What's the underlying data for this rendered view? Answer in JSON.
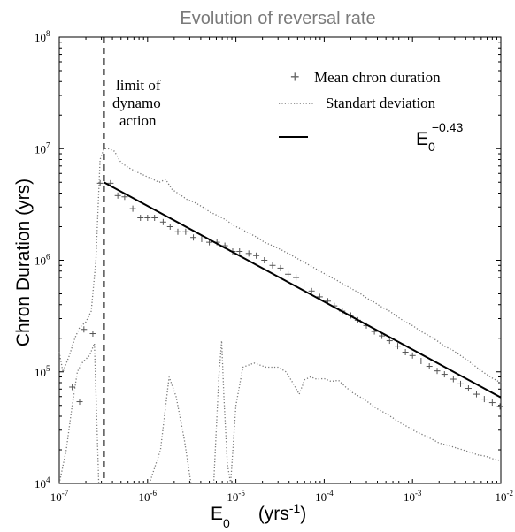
{
  "chart_data": {
    "type": "scatter",
    "title": "Evolution  of reversal rate",
    "xlabel": {
      "base": "E",
      "sub": "0",
      "unit_prefix": "(yrs",
      "unit_exp": "-1",
      "unit_suffix": ")"
    },
    "ylabel": "Chron Duration   (yrs)",
    "x_scale": "log",
    "y_scale": "log",
    "xlim": [
      1e-07,
      0.01
    ],
    "ylim": [
      10000.0,
      100000000.0
    ],
    "x_ticks": [
      {
        "value": 1e-07,
        "base": "10",
        "exp": "-7"
      },
      {
        "value": 1e-06,
        "base": "10",
        "exp": "-6"
      },
      {
        "value": 1e-05,
        "base": "10",
        "exp": "-5"
      },
      {
        "value": 0.0001,
        "base": "10",
        "exp": "-4"
      },
      {
        "value": 0.001,
        "base": "10",
        "exp": "-3"
      },
      {
        "value": 0.01,
        "base": "10",
        "exp": "-2"
      }
    ],
    "y_ticks": [
      {
        "value": 10000.0,
        "base": "10",
        "exp": "4"
      },
      {
        "value": 100000.0,
        "base": "10",
        "exp": "5"
      },
      {
        "value": 1000000.0,
        "base": "10",
        "exp": "6"
      },
      {
        "value": 10000000.0,
        "base": "10",
        "exp": "7"
      },
      {
        "value": 100000000.0,
        "base": "10",
        "exp": "8"
      }
    ],
    "grid": false,
    "legend_position": "top-right",
    "legend": [
      {
        "label": "Mean chron duration",
        "style": "plus"
      },
      {
        "label": "Standart deviation",
        "style": "dotted"
      },
      {
        "label": "",
        "style": "solid"
      }
    ],
    "fit_label": {
      "base": "E",
      "sub": "0",
      "exp": "−0.43"
    },
    "annotation": {
      "lines": [
        "limit of",
        "dynamo",
        "action"
      ],
      "x": 3.2e-07
    },
    "series": [
      {
        "name": "Mean chron duration",
        "style": "plus",
        "color": "#555555",
        "points": [
          [
            1.4e-07,
            73000.0
          ],
          [
            1.7e-07,
            54000.0
          ],
          [
            1.9e-07,
            240000.0
          ],
          [
            2.4e-07,
            220000.0
          ],
          [
            2.9e-07,
            4900000.0
          ],
          [
            3.8e-07,
            4900000.0
          ],
          [
            4.6e-07,
            3800000.0
          ],
          [
            5.5e-07,
            3700000.0
          ],
          [
            6.8e-07,
            2900000.0
          ],
          [
            8.3e-07,
            2400000.0
          ],
          [
            1e-06,
            2400000.0
          ],
          [
            1.2e-06,
            2400000.0
          ],
          [
            1.5e-06,
            2200000.0
          ],
          [
            1.8e-06,
            2000000.0
          ],
          [
            2.2e-06,
            1800000.0
          ],
          [
            2.7e-06,
            1800000.0
          ],
          [
            3.3e-06,
            1600000.0
          ],
          [
            4.1e-06,
            1550000.0
          ],
          [
            5e-06,
            1450000.0
          ],
          [
            6.1e-06,
            1450000.0
          ],
          [
            7.5e-06,
            1350000.0
          ],
          [
            9.2e-06,
            1200000.0
          ],
          [
            1.1e-05,
            1200000.0
          ],
          [
            1.4e-05,
            1150000.0
          ],
          [
            1.7e-05,
            1100000.0
          ],
          [
            2.1e-05,
            1000000.0
          ],
          [
            2.6e-05,
            900000.0
          ],
          [
            3.2e-05,
            850000.0
          ],
          [
            3.9e-05,
            750000.0
          ],
          [
            4.8e-05,
            700000.0
          ],
          [
            5.9e-05,
            600000.0
          ],
          [
            7.2e-05,
            530000.0
          ],
          [
            8.9e-05,
            470000.0
          ],
          [
            0.00011,
            430000.0
          ],
          [
            0.00013,
            390000.0
          ],
          [
            0.00016,
            350000.0
          ],
          [
            0.0002,
            320000.0
          ],
          [
            0.00024,
            290000.0
          ],
          [
            0.0003,
            260000.0
          ],
          [
            0.00037,
            230000.0
          ],
          [
            0.00045,
            210000.0
          ],
          [
            0.00055,
            190000.0
          ],
          [
            0.00068,
            170000.0
          ],
          [
            0.00083,
            150000.0
          ],
          [
            0.001,
            140000.0
          ],
          [
            0.00125,
            125000.0
          ],
          [
            0.00155,
            112000.0
          ],
          [
            0.0019,
            102000.0
          ],
          [
            0.0023,
            95000.0
          ],
          [
            0.0029,
            86000.0
          ],
          [
            0.0035,
            78000.0
          ],
          [
            0.0043,
            71000.0
          ],
          [
            0.0053,
            63000.0
          ],
          [
            0.0065,
            57000.0
          ],
          [
            0.008,
            53000.0
          ],
          [
            0.0098,
            49000.0
          ]
        ]
      },
      {
        "name": "Standart deviation",
        "style": "dotted",
        "color": "#777777",
        "points": [
          [
            1e-07,
            150000.0
          ],
          [
            1.1e-07,
            100000.0
          ],
          [
            1.3e-07,
            140000.0
          ],
          [
            1.5e-07,
            200000.0
          ],
          [
            1.7e-07,
            250000.0
          ],
          [
            2e-07,
            280000.0
          ],
          [
            2.3e-07,
            350000.0
          ],
          [
            2.6e-07,
            1000000.0
          ],
          [
            2.9e-07,
            8000000.0
          ],
          [
            3.2e-07,
            10000000.0
          ],
          [
            3.6e-07,
            10000000.0
          ],
          [
            4.2e-07,
            9500000.0
          ],
          [
            5e-07,
            7500000.0
          ],
          [
            6e-07,
            6800000.0
          ],
          [
            7.5e-07,
            6200000.0
          ],
          [
            9e-07,
            5800000.0
          ],
          [
            1.1e-06,
            5400000.0
          ],
          [
            1.35e-06,
            5000000.0
          ],
          [
            1.6e-06,
            5300000.0
          ],
          [
            1.9e-06,
            4300000.0
          ],
          [
            2.3e-06,
            3900000.0
          ],
          [
            2.8e-06,
            3500000.0
          ],
          [
            3.4e-06,
            3300000.0
          ],
          [
            4.2e-06,
            3000000.0
          ],
          [
            5.1e-06,
            2700000.0
          ],
          [
            6.3e-06,
            2500000.0
          ],
          [
            7.7e-06,
            2300000.0
          ],
          [
            9.4e-06,
            2050000.0
          ],
          [
            1.15e-05,
            1900000.0
          ],
          [
            1.4e-05,
            1750000.0
          ],
          [
            1.75e-05,
            1600000.0
          ],
          [
            2.1e-05,
            1450000.0
          ],
          [
            2.6e-05,
            1350000.0
          ],
          [
            3.2e-05,
            1250000.0
          ],
          [
            3.9e-05,
            1150000.0
          ],
          [
            4.8e-05,
            1050000.0
          ],
          [
            5.9e-05,
            960000.0
          ],
          [
            7.2e-05,
            880000.0
          ],
          [
            8.9e-05,
            800000.0
          ],
          [
            0.00011,
            730000.0
          ],
          [
            0.000135,
            670000.0
          ],
          [
            0.000165,
            610000.0
          ],
          [
            0.0002,
            560000.0
          ],
          [
            0.00025,
            510000.0
          ],
          [
            0.0003,
            460000.0
          ],
          [
            0.00037,
            420000.0
          ],
          [
            0.00045,
            380000.0
          ],
          [
            0.00055,
            350000.0
          ],
          [
            0.00068,
            310000.0
          ],
          [
            0.00083,
            280000.0
          ],
          [
            0.001,
            260000.0
          ],
          [
            0.00125,
            230000.0
          ],
          [
            0.00155,
            210000.0
          ],
          [
            0.0019,
            190000.0
          ],
          [
            0.0023,
            170000.0
          ],
          [
            0.0029,
            155000.0
          ],
          [
            0.0035,
            140000.0
          ],
          [
            0.0043,
            125000.0
          ],
          [
            0.0053,
            110000.0
          ],
          [
            0.0065,
            98000.0
          ],
          [
            0.008,
            88000.0
          ],
          [
            0.01,
            80000.0
          ]
        ]
      },
      {
        "name": "Standart deviation",
        "style": "dotted",
        "color": "#777777",
        "points": [
          [
            1e-07,
            10000.0
          ],
          [
            1.2e-07,
            20000.0
          ],
          [
            1.4e-07,
            50000.0
          ],
          [
            1.6e-07,
            100000.0
          ],
          [
            1.8e-07,
            120000.0
          ],
          [
            2e-07,
            130000.0
          ],
          [
            2.2e-07,
            140000.0
          ],
          [
            2.5e-07,
            180000.0
          ],
          [
            2.8e-07,
            10000.0
          ],
          null,
          [
            1.05e-06,
            10000.0
          ],
          [
            1.4e-06,
            20000.0
          ],
          [
            1.75e-06,
            90000.0
          ],
          [
            2.1e-06,
            60000.0
          ],
          [
            2.6e-06,
            25000.0
          ],
          [
            3.1e-06,
            10000.0
          ],
          null,
          [
            5.6e-06,
            10000.0
          ],
          [
            6.4e-06,
            90000.0
          ],
          [
            6.9e-06,
            190000.0
          ],
          [
            7.3e-06,
            60000.0
          ],
          [
            8e-06,
            15000.0
          ],
          [
            8.7e-06,
            10000.0
          ],
          [
            1e-05,
            50000.0
          ],
          [
            1.2e-05,
            110000.0
          ],
          [
            1.6e-05,
            120000.0
          ],
          [
            2.2e-05,
            110000.0
          ],
          [
            3e-05,
            110000.0
          ],
          [
            3.7e-05,
            100000.0
          ],
          [
            4.4e-05,
            80000.0
          ],
          [
            5.2e-05,
            63000.0
          ],
          [
            6e-05,
            85000.0
          ],
          [
            7e-05,
            90000.0
          ],
          [
            8.2e-05,
            86000.0
          ],
          [
            0.0001,
            87000.0
          ],
          [
            0.00012,
            82000.0
          ],
          [
            0.000145,
            84000.0
          ],
          [
            0.000175,
            73000.0
          ],
          [
            0.00021,
            65000.0
          ],
          [
            0.00026,
            59000.0
          ],
          [
            0.00032,
            53000.0
          ],
          [
            0.00039,
            47000.0
          ],
          [
            0.00048,
            43000.0
          ],
          [
            0.00059,
            39000.0
          ],
          [
            0.00072,
            35000.0
          ],
          [
            0.00089,
            32000.0
          ],
          [
            0.0011,
            29000.0
          ],
          [
            0.00135,
            27000.0
          ],
          [
            0.00165,
            25000.0
          ],
          [
            0.002,
            23000.0
          ],
          [
            0.0025,
            22000.0
          ],
          [
            0.003,
            21000.0
          ],
          [
            0.0037,
            20000.0
          ],
          [
            0.0045,
            19000.0
          ],
          [
            0.0055,
            18000.0
          ],
          [
            0.0068,
            17500.0
          ],
          [
            0.0083,
            16500.0
          ],
          [
            0.01,
            16000.0
          ]
        ]
      },
      {
        "name": "",
        "style": "solid",
        "color": "#000000",
        "points": [
          [
            3.2e-07,
            5000000.0
          ],
          [
            0.01,
            59000.0
          ]
        ]
      }
    ]
  }
}
